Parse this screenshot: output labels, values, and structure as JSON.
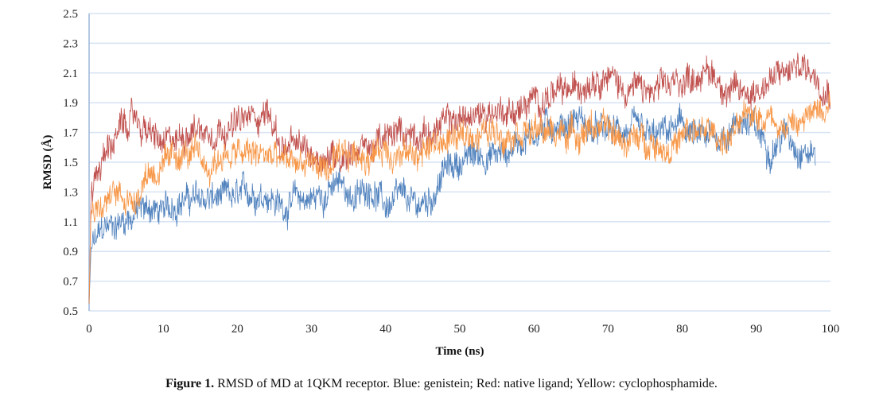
{
  "chart_data": {
    "type": "line",
    "title": "",
    "xlabel": "Time (ns)",
    "ylabel": "RMSD (Å)",
    "xlim": [
      0,
      100
    ],
    "ylim": [
      0.5,
      2.5
    ],
    "xticks": [
      "0",
      "10",
      "20",
      "30",
      "40",
      "50",
      "60",
      "70",
      "80",
      "90",
      "100"
    ],
    "yticks": [
      "0.5",
      "0.7",
      "0.9",
      "1.1",
      "1.3",
      "1.5",
      "1.7",
      "1.9",
      "2.1",
      "2.3",
      "2.5"
    ],
    "grid": "horizontal",
    "legend": "none",
    "series": [
      {
        "name": "genistein",
        "color": "#4f81bd",
        "x": [
          0,
          2,
          4,
          6,
          8,
          10,
          12,
          14,
          16,
          18,
          20,
          22,
          24,
          26,
          28,
          30,
          32,
          34,
          36,
          38,
          40,
          42,
          44,
          46,
          48,
          50,
          52,
          54,
          56,
          58,
          60,
          62,
          64,
          66,
          68,
          70,
          72,
          74,
          76,
          78,
          80,
          82,
          84,
          86,
          88,
          90,
          92,
          94,
          96,
          98
        ],
        "values": [
          0.9,
          1.05,
          1.1,
          1.15,
          1.2,
          1.15,
          1.25,
          1.25,
          1.25,
          1.25,
          1.25,
          1.3,
          1.3,
          1.2,
          1.25,
          1.25,
          1.3,
          1.35,
          1.25,
          1.35,
          1.2,
          1.25,
          1.2,
          1.25,
          1.45,
          1.5,
          1.55,
          1.55,
          1.55,
          1.65,
          1.7,
          1.75,
          1.75,
          1.8,
          1.7,
          1.7,
          1.7,
          1.7,
          1.65,
          1.7,
          1.75,
          1.65,
          1.65,
          1.7,
          1.8,
          1.7,
          1.6,
          1.7,
          1.6,
          1.55
        ]
      },
      {
        "name": "native ligand",
        "color": "#c0504d",
        "x": [
          0,
          2,
          4,
          6,
          8,
          10,
          12,
          14,
          16,
          18,
          20,
          22,
          24,
          26,
          28,
          30,
          32,
          34,
          36,
          38,
          40,
          42,
          44,
          46,
          48,
          50,
          52,
          54,
          56,
          58,
          60,
          62,
          64,
          66,
          68,
          70,
          72,
          74,
          76,
          78,
          80,
          82,
          84,
          86,
          88,
          90,
          92,
          94,
          96,
          98,
          100
        ],
        "values": [
          1.3,
          1.55,
          1.7,
          1.8,
          1.7,
          1.6,
          1.65,
          1.75,
          1.7,
          1.75,
          1.75,
          1.8,
          1.85,
          1.6,
          1.6,
          1.55,
          1.55,
          1.55,
          1.6,
          1.6,
          1.65,
          1.7,
          1.7,
          1.7,
          1.75,
          1.8,
          1.8,
          1.85,
          1.85,
          1.85,
          1.9,
          1.95,
          1.95,
          2.0,
          2.1,
          2.1,
          2.0,
          2.0,
          1.95,
          2.0,
          2.05,
          2.1,
          2.1,
          2.0,
          1.95,
          2.0,
          2.05,
          2.1,
          2.15,
          2.1,
          2.0
        ]
      },
      {
        "name": "cyclophosphamide",
        "color": "#f79646",
        "x": [
          0,
          2,
          4,
          6,
          8,
          10,
          12,
          14,
          16,
          18,
          20,
          22,
          24,
          26,
          28,
          30,
          32,
          34,
          36,
          38,
          40,
          42,
          44,
          46,
          48,
          50,
          52,
          54,
          56,
          58,
          60,
          62,
          64,
          66,
          68,
          70,
          72,
          74,
          76,
          78,
          80,
          82,
          84,
          86,
          88,
          90,
          92,
          94,
          96,
          98,
          100
        ],
        "values": [
          1.2,
          1.2,
          1.3,
          1.25,
          1.45,
          1.45,
          1.55,
          1.55,
          1.45,
          1.55,
          1.55,
          1.55,
          1.55,
          1.5,
          1.5,
          1.5,
          1.45,
          1.5,
          1.55,
          1.55,
          1.6,
          1.55,
          1.55,
          1.6,
          1.65,
          1.65,
          1.7,
          1.7,
          1.7,
          1.75,
          1.7,
          1.7,
          1.7,
          1.7,
          1.75,
          1.7,
          1.65,
          1.65,
          1.65,
          1.6,
          1.65,
          1.7,
          1.7,
          1.65,
          1.75,
          1.85,
          1.8,
          1.75,
          1.75,
          1.85,
          1.95
        ]
      }
    ]
  },
  "caption": {
    "label": "Figure 1.",
    "text": " RMSD of MD at 1QKM receptor. Blue: genistein; Red: native ligand; Yellow: cyclophosphamide."
  }
}
